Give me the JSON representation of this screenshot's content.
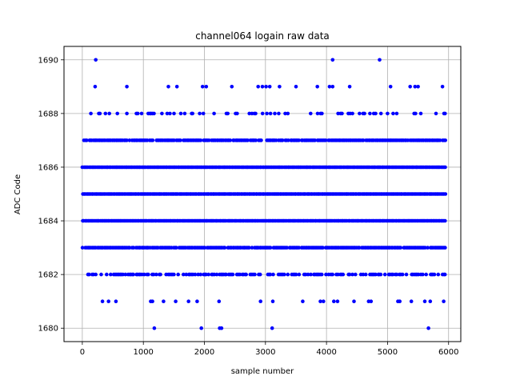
{
  "chart_data": {
    "type": "scatter",
    "title": "channel064 logain raw data",
    "xlabel": "sample number",
    "ylabel": "ADC Code",
    "xlim": [
      -300,
      6200
    ],
    "ylim": [
      1679.5,
      1690.5
    ],
    "xticks": [
      0,
      1000,
      2000,
      3000,
      4000,
      5000,
      6000
    ],
    "yticks": [
      1680,
      1682,
      1684,
      1686,
      1688,
      1690
    ],
    "grid": true,
    "marker_color": "#0000ff",
    "n_samples": 5950,
    "series": [
      {
        "points": [
          {
            "y": 1690,
            "x": [
              220,
              4100,
              4870
            ]
          },
          {
            "y": 1689,
            "x": [
              210,
              730,
              1410,
              1550,
              1970,
              2030,
              2450,
              2880,
              2950,
              3010,
              3070,
              3230,
              3500,
              3850,
              4050,
              4100,
              4380,
              5050,
              5370,
              5450,
              5500,
              5900
            ]
          },
          {
            "y": 1680,
            "x": [
              1180,
              1950,
              2250,
              2280,
              3110,
              5670
            ]
          },
          {
            "y": 1681,
            "x": [
              330,
              430,
              550,
              1120,
              1150,
              1330,
              1530,
              1740,
              1880,
              2240,
              2920,
              3120,
              3610,
              3900,
              3950,
              4120,
              4180,
              4450,
              4690,
              4730,
              5170,
              5200,
              5390,
              5610,
              5700,
              5920
            ]
          }
        ],
        "dense_levels": [
          {
            "y": 1688,
            "fill": 0.3
          },
          {
            "y": 1687,
            "fill": 0.9
          },
          {
            "y": 1686,
            "fill": 1.0
          },
          {
            "y": 1685,
            "fill": 1.0
          },
          {
            "y": 1684,
            "fill": 1.0
          },
          {
            "y": 1683,
            "fill": 0.95
          },
          {
            "y": 1682,
            "fill": 0.6
          }
        ]
      }
    ]
  }
}
